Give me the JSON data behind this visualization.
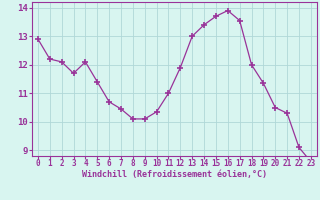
{
  "x": [
    0,
    1,
    2,
    3,
    4,
    5,
    6,
    7,
    8,
    9,
    10,
    11,
    12,
    13,
    14,
    15,
    16,
    17,
    18,
    19,
    20,
    21,
    22,
    23
  ],
  "y": [
    12.9,
    12.2,
    12.1,
    11.7,
    12.1,
    11.4,
    10.7,
    10.45,
    10.1,
    10.1,
    10.35,
    11.0,
    11.9,
    13.0,
    13.4,
    13.7,
    13.9,
    13.55,
    12.0,
    11.35,
    10.5,
    10.3,
    9.1,
    8.6
  ],
  "line_color": "#993399",
  "marker": "+",
  "marker_size": 5,
  "marker_linewidth": 1.2,
  "bg_color": "#d8f5f0",
  "grid_color": "#b0d8d8",
  "xlabel": "Windchill (Refroidissement éolien,°C)",
  "xlabel_color": "#993399",
  "tick_color": "#993399",
  "spine_color": "#993399",
  "ylim_min": 8.8,
  "ylim_max": 14.2,
  "yticks": [
    9,
    10,
    11,
    12,
    13,
    14
  ],
  "xticks": [
    0,
    1,
    2,
    3,
    4,
    5,
    6,
    7,
    8,
    9,
    10,
    11,
    12,
    13,
    14,
    15,
    16,
    17,
    18,
    19,
    20,
    21,
    22,
    23
  ],
  "tick_fontsize": 5.5,
  "xlabel_fontsize": 6.0,
  "ytick_fontsize": 6.5
}
